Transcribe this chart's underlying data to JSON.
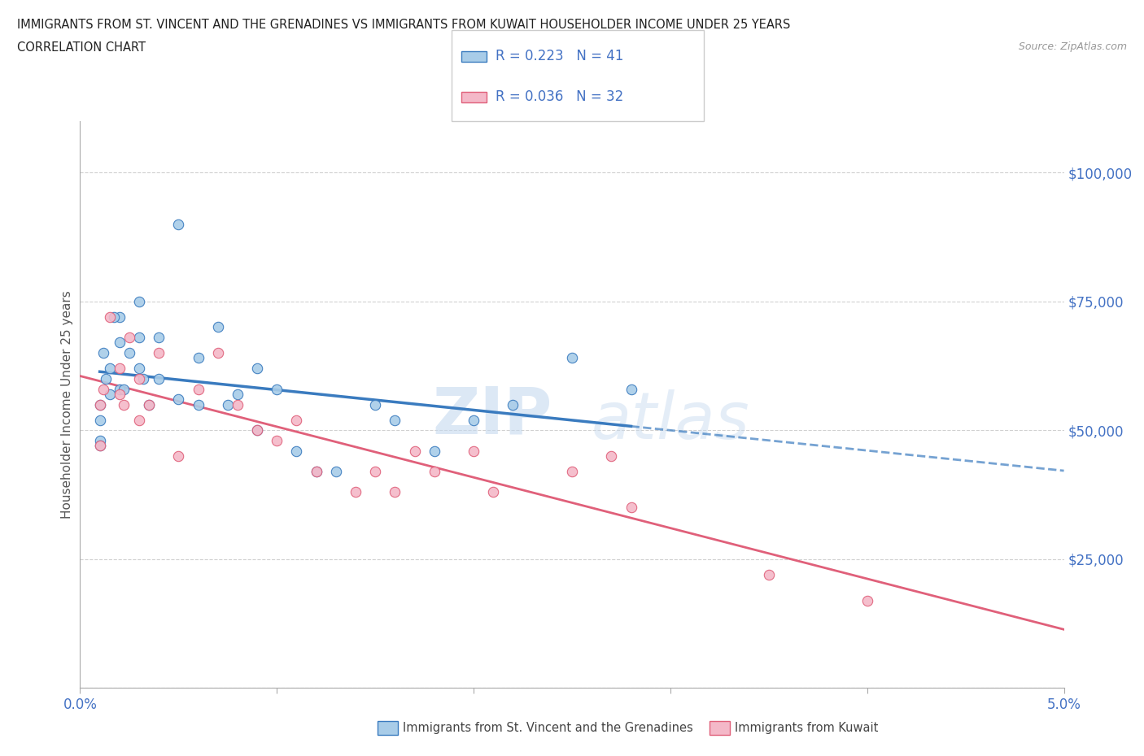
{
  "title_line1": "IMMIGRANTS FROM ST. VINCENT AND THE GRENADINES VS IMMIGRANTS FROM KUWAIT HOUSEHOLDER INCOME UNDER 25 YEARS",
  "title_line2": "CORRELATION CHART",
  "source": "Source: ZipAtlas.com",
  "ylabel": "Householder Income Under 25 years",
  "xlim": [
    0,
    0.05
  ],
  "ylim": [
    0,
    110000
  ],
  "xticks": [
    0.0,
    0.01,
    0.02,
    0.03,
    0.04,
    0.05
  ],
  "xtick_labels": [
    "0.0%",
    "",
    "",
    "",
    "",
    "5.0%"
  ],
  "ytick_vals": [
    0,
    25000,
    50000,
    75000,
    100000
  ],
  "ytick_labels": [
    "",
    "$25,000",
    "$50,000",
    "$75,000",
    "$100,000"
  ],
  "series1_color": "#a8cce8",
  "series2_color": "#f4b8c8",
  "trend1_color": "#3a7bbf",
  "trend2_color": "#e0607a",
  "legend_r1": "R = 0.223",
  "legend_n1": "N = 41",
  "legend_r2": "R = 0.036",
  "legend_n2": "N = 32",
  "watermark_zip": "ZIP",
  "watermark_atlas": "atlas",
  "background_color": "#ffffff",
  "grid_color": "#d0d0d0",
  "axis_label_color": "#4472c4",
  "title_color": "#222222",
  "series1_x": [
    0.001,
    0.001,
    0.0015,
    0.002,
    0.003,
    0.005,
    0.001,
    0.001,
    0.0012,
    0.0013,
    0.0015,
    0.0017,
    0.002,
    0.002,
    0.0022,
    0.0025,
    0.003,
    0.003,
    0.0032,
    0.0035,
    0.004,
    0.004,
    0.005,
    0.006,
    0.006,
    0.007,
    0.0075,
    0.008,
    0.009,
    0.009,
    0.01,
    0.011,
    0.012,
    0.013,
    0.015,
    0.016,
    0.018,
    0.02,
    0.022,
    0.025,
    0.028
  ],
  "series1_y": [
    48000,
    55000,
    57000,
    72000,
    75000,
    90000,
    47000,
    52000,
    65000,
    60000,
    62000,
    72000,
    58000,
    67000,
    58000,
    65000,
    62000,
    68000,
    60000,
    55000,
    60000,
    68000,
    56000,
    64000,
    55000,
    70000,
    55000,
    57000,
    62000,
    50000,
    58000,
    46000,
    42000,
    42000,
    55000,
    52000,
    46000,
    52000,
    55000,
    64000,
    58000
  ],
  "series2_x": [
    0.001,
    0.001,
    0.0012,
    0.0015,
    0.002,
    0.002,
    0.0022,
    0.0025,
    0.003,
    0.003,
    0.0035,
    0.004,
    0.005,
    0.006,
    0.007,
    0.008,
    0.009,
    0.01,
    0.011,
    0.012,
    0.014,
    0.015,
    0.016,
    0.017,
    0.018,
    0.02,
    0.021,
    0.025,
    0.027,
    0.028,
    0.035,
    0.04
  ],
  "series2_y": [
    47000,
    55000,
    58000,
    72000,
    57000,
    62000,
    55000,
    68000,
    52000,
    60000,
    55000,
    65000,
    45000,
    58000,
    65000,
    55000,
    50000,
    48000,
    52000,
    42000,
    38000,
    42000,
    38000,
    46000,
    42000,
    46000,
    38000,
    42000,
    45000,
    35000,
    22000,
    17000
  ]
}
